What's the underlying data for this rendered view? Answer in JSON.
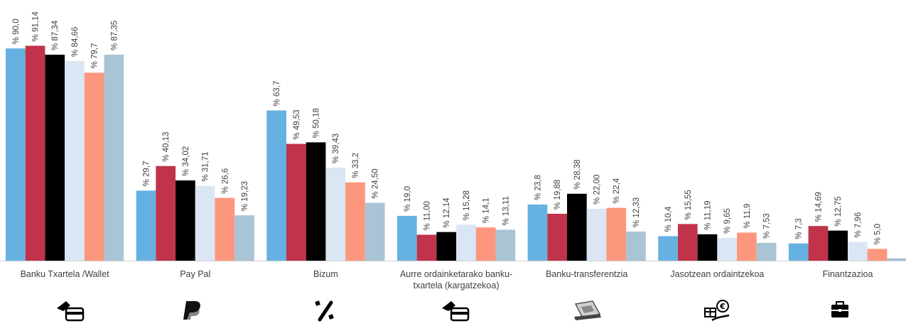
{
  "chart_data": {
    "type": "bar",
    "categories": [
      "Banku Txartela /Wallet",
      "Pay Pal",
      "Bizum",
      "Aurre ordainketarako banku-txartela (kargatzekoa)",
      "Banku-transferentzia",
      "Jasotzean ordaintzekoa",
      "Finantzazioa"
    ],
    "category_lines": [
      [
        "Banku Txartela /Wallet"
      ],
      [
        "Pay Pal"
      ],
      [
        "Bizum"
      ],
      [
        "Aurre ordainketarako banku-",
        "txartela (kargatzekoa)"
      ],
      [
        "Banku-transferentzia"
      ],
      [
        "Jasotzean ordaintzekoa"
      ],
      [
        "Finantzazioa"
      ]
    ],
    "series": [
      {
        "color": "#65b1e1",
        "values": [
          90.0,
          29.7,
          63.7,
          19.0,
          23.8,
          10.4,
          7.3
        ],
        "labels": [
          "% 90,0",
          "% 29,7",
          "% 63,7",
          "% 19,0",
          "% 23,8",
          "% 10,4",
          "% 7,3"
        ]
      },
      {
        "color": "#c0334a",
        "values": [
          91.14,
          40.13,
          49.53,
          11.0,
          19.88,
          15.55,
          14.69
        ],
        "labels": [
          "% 91,14",
          "% 40,13",
          "% 49,53",
          "% 11,00",
          "% 19,88",
          "% 15,55",
          "% 14,69"
        ]
      },
      {
        "color": "#000000",
        "values": [
          87.34,
          34.02,
          50.18,
          12.14,
          28.38,
          11.19,
          12.75
        ],
        "labels": [
          "% 87,34",
          "% 34,02",
          "% 50,18",
          "% 12,14",
          "% 28,38",
          "% 11,19",
          "% 12,75"
        ]
      },
      {
        "color": "#dae6f4",
        "values": [
          84.66,
          31.71,
          39.43,
          15.28,
          22.0,
          9.65,
          7.96
        ],
        "labels": [
          "% 84,66",
          "% 31,71",
          "% 39,43",
          "% 15,28",
          "% 22,00",
          "% 9,65",
          "% 7,96"
        ]
      },
      {
        "color": "#fc977d",
        "values": [
          79.7,
          26.6,
          33.2,
          14.1,
          22.4,
          11.9,
          5.0
        ],
        "labels": [
          "% 79,7",
          "% 26,6",
          "% 33,2",
          "% 14,1",
          "% 22,4",
          "% 11,9",
          "% 5,0"
        ]
      },
      {
        "color": "#a9c4d5",
        "values": [
          87.35,
          19.23,
          24.5,
          13.11,
          12.33,
          7.53,
          1.0
        ],
        "labels": [
          "% 87,35",
          "% 19,23",
          "% 24,50",
          "% 13,11",
          "% 12,33",
          "% 7,53",
          ""
        ]
      }
    ],
    "ylim": [
      0,
      100
    ],
    "grid": false,
    "legend": "none"
  },
  "icons": [
    "card-wallet-icon",
    "paypal-icon",
    "bizum-icon",
    "prepaid-card-icon",
    "bank-transfer-icon",
    "cash-on-delivery-icon",
    "financing-briefcase-icon"
  ],
  "colors": {
    "axis": "#d0d0d0",
    "text": "#404040",
    "icon": "#000000"
  }
}
